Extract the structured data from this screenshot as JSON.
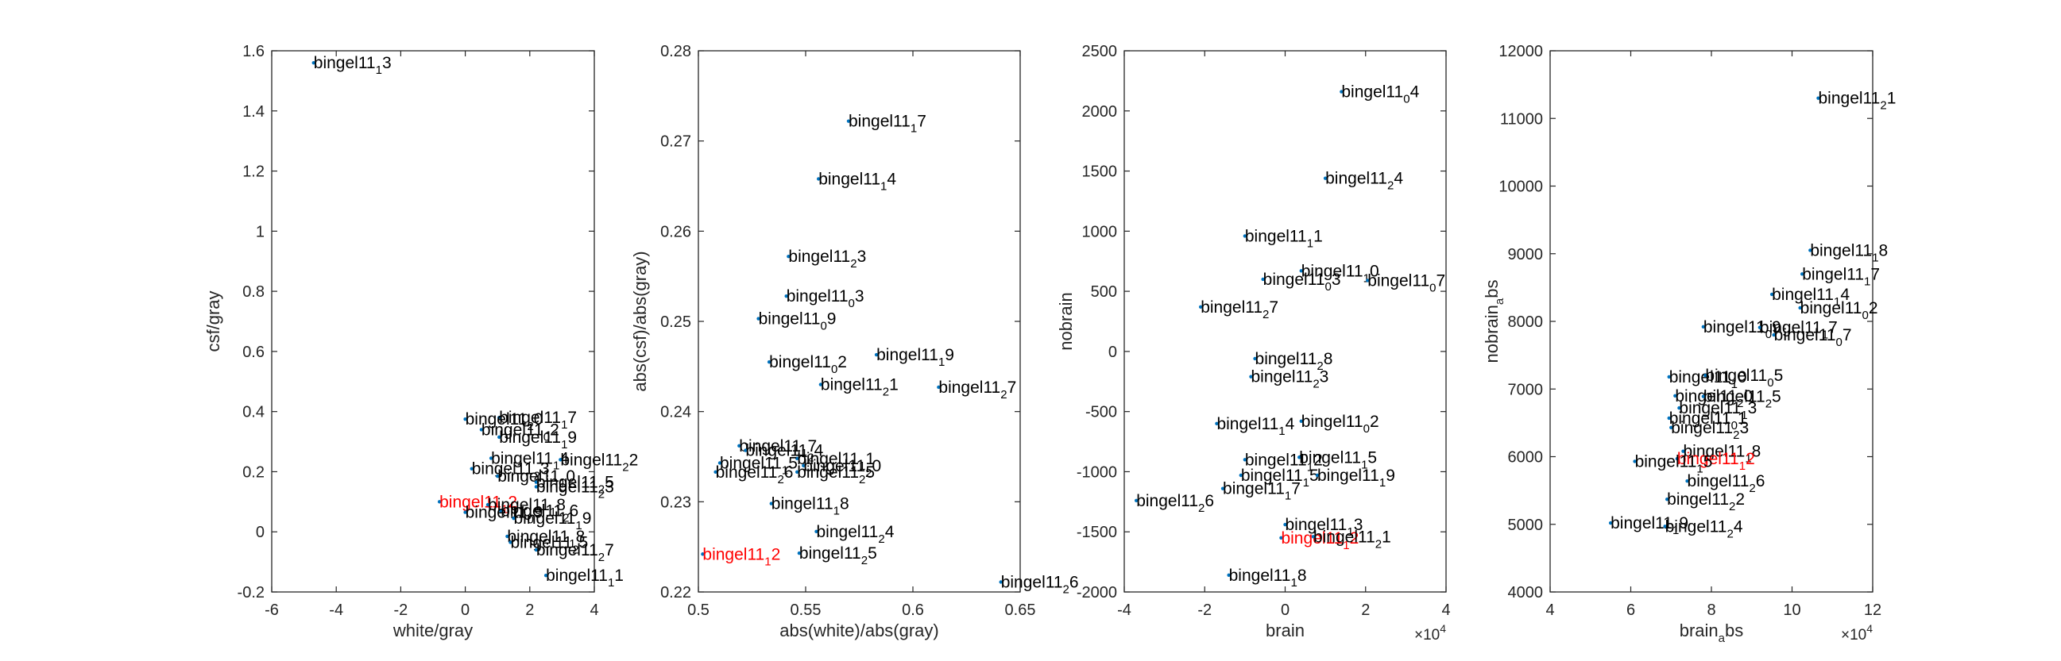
{
  "colors": {
    "marker": "#0072BD",
    "normal_label": "#000000",
    "highlight_label": "#FF0000",
    "axis": "#262626"
  },
  "charts": [
    {
      "type": "scatter",
      "xlabel": "white/gray",
      "ylabel": "csf/gray",
      "xlim": [
        -6,
        4
      ],
      "ylim": [
        -0.2,
        1.6
      ],
      "xticks": [
        -6,
        -4,
        -2,
        0,
        2,
        4
      ],
      "xtick_labels": [
        "-6",
        "-4",
        "-2",
        "0",
        "2",
        "4"
      ],
      "yticks": [
        -0.2,
        0,
        0.2,
        0.4,
        0.6,
        0.8,
        1,
        1.2,
        1.4,
        1.6
      ],
      "ytick_labels": [
        "-0.2",
        "0",
        "0.2",
        "0.4",
        "0.6",
        "0.8",
        "1",
        "1.2",
        "1.4",
        "1.6"
      ],
      "exponent_label": "",
      "points": [
        {
          "x": -4.7,
          "y": 1.56,
          "base": "bingel11",
          "sub": "1",
          "suf": "3",
          "red": false
        },
        {
          "x": 1.05,
          "y": 0.38,
          "base": "bingel11",
          "sub": "1",
          "suf": "7",
          "red": false
        },
        {
          "x": 0.0,
          "y": 0.375,
          "base": "bingel11",
          "sub": "2",
          "suf": "0",
          "red": false
        },
        {
          "x": 0.5,
          "y": 0.34,
          "base": "bingel11",
          "sub": "0",
          "suf": "2",
          "red": false
        },
        {
          "x": 1.05,
          "y": 0.315,
          "base": "bingel11",
          "sub": "1",
          "suf": "9",
          "red": false
        },
        {
          "x": 0.8,
          "y": 0.245,
          "base": "bingel11",
          "sub": "1",
          "suf": "4",
          "red": false
        },
        {
          "x": 2.95,
          "y": 0.24,
          "base": "bingel11",
          "sub": "2",
          "suf": "2",
          "red": false
        },
        {
          "x": 0.2,
          "y": 0.21,
          "base": "bingel11",
          "sub": "2",
          "suf": "3",
          "red": false
        },
        {
          "x": 1.0,
          "y": 0.185,
          "base": "bingel11",
          "sub": "1",
          "suf": "0",
          "red": false
        },
        {
          "x": 2.2,
          "y": 0.165,
          "base": "bingel11",
          "sub": "2",
          "suf": "5",
          "red": false
        },
        {
          "x": 2.2,
          "y": 0.15,
          "base": "bingel11",
          "sub": "2",
          "suf": "3",
          "red": false
        },
        {
          "x": -0.8,
          "y": 0.1,
          "base": "bingel11",
          "sub": "1",
          "suf": "2",
          "red": true
        },
        {
          "x": 0.7,
          "y": 0.09,
          "base": "bingel11",
          "sub": "1",
          "suf": "8",
          "red": false
        },
        {
          "x": 1.1,
          "y": 0.07,
          "base": "bingel11",
          "sub": "2",
          "suf": "6",
          "red": false
        },
        {
          "x": 0.0,
          "y": 0.065,
          "base": "bingel11",
          "sub": "0",
          "suf": "9",
          "red": false
        },
        {
          "x": 1.5,
          "y": 0.045,
          "base": "bingel11",
          "sub": "1",
          "suf": "9",
          "red": false
        },
        {
          "x": 1.3,
          "y": -0.015,
          "base": "bingel11",
          "sub": "1",
          "suf": "8",
          "red": false
        },
        {
          "x": 1.4,
          "y": -0.035,
          "base": "bingel11",
          "sub": "2",
          "suf": "5",
          "red": false
        },
        {
          "x": 2.2,
          "y": -0.06,
          "base": "bingel11",
          "sub": "2",
          "suf": "7",
          "red": false
        },
        {
          "x": 2.5,
          "y": -0.145,
          "base": "bingel11",
          "sub": "1",
          "suf": "1",
          "red": false
        }
      ]
    },
    {
      "type": "scatter",
      "xlabel": "abs(white)/abs(gray)",
      "ylabel": "abs(csf)/abs(gray)",
      "xlim": [
        0.5,
        0.65
      ],
      "ylim": [
        0.22,
        0.28
      ],
      "xticks": [
        0.5,
        0.55,
        0.6,
        0.65
      ],
      "xtick_labels": [
        "0.5",
        "0.55",
        "0.6",
        "0.65"
      ],
      "yticks": [
        0.22,
        0.23,
        0.24,
        0.25,
        0.26,
        0.27,
        0.28
      ],
      "ytick_labels": [
        "0.22",
        "0.23",
        "0.24",
        "0.25",
        "0.26",
        "0.27",
        "0.28"
      ],
      "exponent_label": "",
      "points": [
        {
          "x": 0.57,
          "y": 0.2722,
          "base": "bingel11",
          "sub": "1",
          "suf": "7",
          "red": false
        },
        {
          "x": 0.556,
          "y": 0.2658,
          "base": "bingel11",
          "sub": "1",
          "suf": "4",
          "red": false
        },
        {
          "x": 0.542,
          "y": 0.2572,
          "base": "bingel11",
          "sub": "2",
          "suf": "3",
          "red": false
        },
        {
          "x": 0.541,
          "y": 0.2528,
          "base": "bingel11",
          "sub": "0",
          "suf": "3",
          "red": false
        },
        {
          "x": 0.528,
          "y": 0.2503,
          "base": "bingel11",
          "sub": "0",
          "suf": "9",
          "red": false
        },
        {
          "x": 0.583,
          "y": 0.2463,
          "base": "bingel11",
          "sub": "1",
          "suf": "9",
          "red": false
        },
        {
          "x": 0.533,
          "y": 0.2455,
          "base": "bingel11",
          "sub": "0",
          "suf": "2",
          "red": false
        },
        {
          "x": 0.557,
          "y": 0.243,
          "base": "bingel11",
          "sub": "2",
          "suf": "1",
          "red": false
        },
        {
          "x": 0.612,
          "y": 0.2427,
          "base": "bingel11",
          "sub": "2",
          "suf": "7",
          "red": false
        },
        {
          "x": 0.519,
          "y": 0.2362,
          "base": "bingel11",
          "sub": "1",
          "suf": "7",
          "red": false
        },
        {
          "x": 0.522,
          "y": 0.2357,
          "base": "bingel11",
          "sub": "2",
          "suf": "4",
          "red": false
        },
        {
          "x": 0.546,
          "y": 0.2348,
          "base": "bingel11",
          "sub": "1",
          "suf": "1",
          "red": false
        },
        {
          "x": 0.51,
          "y": 0.2343,
          "base": "bingel11",
          "sub": "1",
          "suf": "5",
          "red": false
        },
        {
          "x": 0.549,
          "y": 0.234,
          "base": "bingel11",
          "sub": "2",
          "suf": "0",
          "red": false
        },
        {
          "x": 0.508,
          "y": 0.2333,
          "base": "bingel11",
          "sub": "2",
          "suf": "6",
          "red": false
        },
        {
          "x": 0.546,
          "y": 0.2333,
          "base": "bingel11",
          "sub": "2",
          "suf": "5",
          "red": false
        },
        {
          "x": 0.534,
          "y": 0.2298,
          "base": "bingel11",
          "sub": "1",
          "suf": "8",
          "red": false
        },
        {
          "x": 0.555,
          "y": 0.2267,
          "base": "bingel11",
          "sub": "2",
          "suf": "4",
          "red": false
        },
        {
          "x": 0.502,
          "y": 0.2242,
          "base": "bingel11",
          "sub": "1",
          "suf": "2",
          "red": true
        },
        {
          "x": 0.547,
          "y": 0.2243,
          "base": "bingel11",
          "sub": "2",
          "suf": "5",
          "red": false
        },
        {
          "x": 0.641,
          "y": 0.2211,
          "base": "bingel11",
          "sub": "2",
          "suf": "6",
          "red": false
        }
      ]
    },
    {
      "type": "scatter",
      "xlabel": "brain",
      "ylabel": "nobrain",
      "xlim": [
        -40000,
        40000
      ],
      "ylim": [
        -2000,
        2500
      ],
      "xticks": [
        -40000,
        -20000,
        0,
        20000,
        40000
      ],
      "xtick_labels": [
        "-4",
        "-2",
        "0",
        "2",
        "4"
      ],
      "yticks": [
        -2000,
        -1500,
        -1000,
        -500,
        0,
        500,
        1000,
        1500,
        2000,
        2500
      ],
      "ytick_labels": [
        "-2000",
        "-1500",
        "-1000",
        "-500",
        "0",
        "500",
        "1000",
        "1500",
        "2000",
        "2500"
      ],
      "exponent_label": "×10",
      "exponent_power": "4",
      "points": [
        {
          "x": 14000,
          "y": 2160,
          "base": "bingel11",
          "sub": "0",
          "suf": "4",
          "red": false
        },
        {
          "x": 10000,
          "y": 1440,
          "base": "bingel11",
          "sub": "2",
          "suf": "4",
          "red": false
        },
        {
          "x": -10000,
          "y": 960,
          "base": "bingel11",
          "sub": "1",
          "suf": "1",
          "red": false
        },
        {
          "x": 4000,
          "y": 670,
          "base": "bingel11",
          "sub": "1",
          "suf": "0",
          "red": false
        },
        {
          "x": -5500,
          "y": 600,
          "base": "bingel11",
          "sub": "0",
          "suf": "3",
          "red": false
        },
        {
          "x": 20500,
          "y": 590,
          "base": "bingel11",
          "sub": "0",
          "suf": "7",
          "red": false
        },
        {
          "x": -21000,
          "y": 370,
          "base": "bingel11",
          "sub": "2",
          "suf": "7",
          "red": false
        },
        {
          "x": -7500,
          "y": -60,
          "base": "bingel11",
          "sub": "2",
          "suf": "8",
          "red": false
        },
        {
          "x": -8500,
          "y": -210,
          "base": "bingel11",
          "sub": "2",
          "suf": "3",
          "red": false
        },
        {
          "x": -17000,
          "y": -600,
          "base": "bingel11",
          "sub": "1",
          "suf": "4",
          "red": false
        },
        {
          "x": 4000,
          "y": -580,
          "base": "bingel11",
          "sub": "0",
          "suf": "2",
          "red": false
        },
        {
          "x": -10000,
          "y": -900,
          "base": "bingel11",
          "sub": "1",
          "suf": "2",
          "red": false
        },
        {
          "x": 3500,
          "y": -880,
          "base": "bingel11",
          "sub": "1",
          "suf": "5",
          "red": false
        },
        {
          "x": -11000,
          "y": -1030,
          "base": "bingel11",
          "sub": "1",
          "suf": "5",
          "red": false
        },
        {
          "x": 8000,
          "y": -1030,
          "base": "bingel11",
          "sub": "1",
          "suf": "9",
          "red": false
        },
        {
          "x": -15500,
          "y": -1140,
          "base": "bingel11",
          "sub": "1",
          "suf": "7",
          "red": false
        },
        {
          "x": -37000,
          "y": -1240,
          "base": "bingel11",
          "sub": "2",
          "suf": "6",
          "red": false
        },
        {
          "x": 0,
          "y": -1440,
          "base": "bingel11",
          "sub": "1",
          "suf": "3",
          "red": false
        },
        {
          "x": -1000,
          "y": -1550,
          "base": "bingel11",
          "sub": "1",
          "suf": "2",
          "red": true
        },
        {
          "x": 7000,
          "y": -1540,
          "base": "bingel11",
          "sub": "2",
          "suf": "1",
          "red": false
        },
        {
          "x": -14000,
          "y": -1860,
          "base": "bingel11",
          "sub": "1",
          "suf": "8",
          "red": false
        }
      ]
    },
    {
      "type": "scatter",
      "xlabel": "brain",
      "xlabel_sub": "a",
      "xlabel_suf": "bs",
      "ylabel": "nobrain",
      "ylabel_sub": "a",
      "ylabel_suf": "bs",
      "xlim": [
        40000,
        120000
      ],
      "ylim": [
        4000,
        12000
      ],
      "xticks": [
        40000,
        60000,
        80000,
        100000,
        120000
      ],
      "xtick_labels": [
        "4",
        "6",
        "8",
        "10",
        "12"
      ],
      "yticks": [
        4000,
        5000,
        6000,
        7000,
        8000,
        9000,
        10000,
        11000,
        12000
      ],
      "ytick_labels": [
        "4000",
        "5000",
        "6000",
        "7000",
        "8000",
        "9000",
        "10000",
        "11000",
        "12000"
      ],
      "exponent_label": "×10",
      "exponent_power": "4",
      "points": [
        {
          "x": 106500,
          "y": 11300,
          "base": "bingel11",
          "sub": "2",
          "suf": "1",
          "red": false
        },
        {
          "x": 104500,
          "y": 9050,
          "base": "bingel11",
          "sub": "1",
          "suf": "8",
          "red": false
        },
        {
          "x": 102500,
          "y": 8700,
          "base": "bingel11",
          "sub": "1",
          "suf": "7",
          "red": false
        },
        {
          "x": 95000,
          "y": 8400,
          "base": "bingel11",
          "sub": "1",
          "suf": "4",
          "red": false
        },
        {
          "x": 102000,
          "y": 8200,
          "base": "bingel11",
          "sub": "0",
          "suf": "2",
          "red": false
        },
        {
          "x": 78000,
          "y": 7920,
          "base": "bingel11",
          "sub": "0",
          "suf": "9",
          "red": false
        },
        {
          "x": 92000,
          "y": 7910,
          "base": "bingel11",
          "sub": "1",
          "suf": "7",
          "red": false
        },
        {
          "x": 95500,
          "y": 7800,
          "base": "bingel11",
          "sub": "0",
          "suf": "7",
          "red": false
        },
        {
          "x": 69500,
          "y": 7180,
          "base": "bingel11",
          "sub": "1",
          "suf": "0",
          "red": false
        },
        {
          "x": 78500,
          "y": 7200,
          "base": "bingel11",
          "sub": "0",
          "suf": "5",
          "red": false
        },
        {
          "x": 71000,
          "y": 6900,
          "base": "bingel11",
          "sub": "2",
          "suf": "0",
          "red": false
        },
        {
          "x": 78000,
          "y": 6890,
          "base": "bingel11",
          "sub": "2",
          "suf": "5",
          "red": false
        },
        {
          "x": 72000,
          "y": 6720,
          "base": "bingel11",
          "sub": "1",
          "suf": "3",
          "red": false
        },
        {
          "x": 69500,
          "y": 6570,
          "base": "bingel11",
          "sub": "0",
          "suf": "1",
          "red": false
        },
        {
          "x": 70000,
          "y": 6430,
          "base": "bingel11",
          "sub": "2",
          "suf": "3",
          "red": false
        },
        {
          "x": 73000,
          "y": 6080,
          "base": "bingel11",
          "sub": "1",
          "suf": "8",
          "red": false
        },
        {
          "x": 71500,
          "y": 5970,
          "base": "bingel11",
          "sub": "1",
          "suf": "2",
          "red": true
        },
        {
          "x": 61000,
          "y": 5930,
          "base": "bingel11",
          "sub": "1",
          "suf": "5",
          "red": false
        },
        {
          "x": 74000,
          "y": 5640,
          "base": "bingel11",
          "sub": "2",
          "suf": "6",
          "red": false
        },
        {
          "x": 69000,
          "y": 5370,
          "base": "bingel11",
          "sub": "2",
          "suf": "2",
          "red": false
        },
        {
          "x": 55000,
          "y": 5020,
          "base": "bingel11",
          "sub": "1",
          "suf": "9",
          "red": false
        },
        {
          "x": 68500,
          "y": 4970,
          "base": "bingel11",
          "sub": "2",
          "suf": "4",
          "red": false
        }
      ]
    }
  ]
}
